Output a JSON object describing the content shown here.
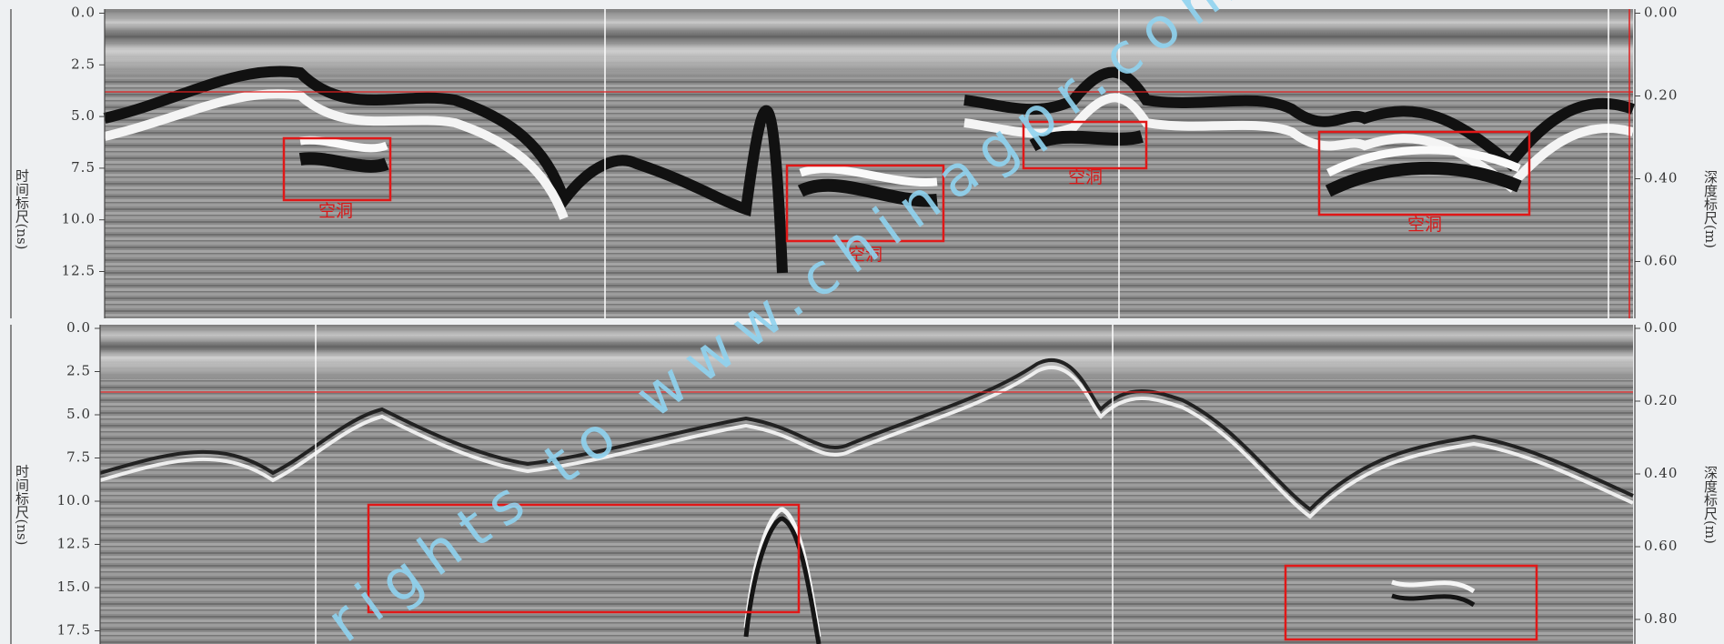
{
  "panels": [
    {
      "left_ticks": [
        "0.0",
        "2.5",
        "5.0",
        "7.5",
        "10.0",
        "12.5"
      ],
      "right_ticks": [
        "0.00",
        "0.20",
        "0.40",
        "0.60"
      ],
      "left_axis_label": "时间标尺(ns)",
      "right_axis_label": "深度标尺(m)",
      "annotations": [
        "空洞",
        "空洞",
        "空洞",
        "空洞"
      ]
    },
    {
      "left_ticks": [
        "0.0",
        "2.5",
        "5.0",
        "7.5",
        "10.0",
        "12.5",
        "15.0",
        "17.5"
      ],
      "right_ticks": [
        "0.00",
        "0.20",
        "0.40",
        "0.60",
        "0.80"
      ],
      "left_axis_label": "时间标尺(ns)",
      "right_axis_label": "深度标尺(m)"
    }
  ],
  "watermark": "rights to www.chinagpr.com"
}
